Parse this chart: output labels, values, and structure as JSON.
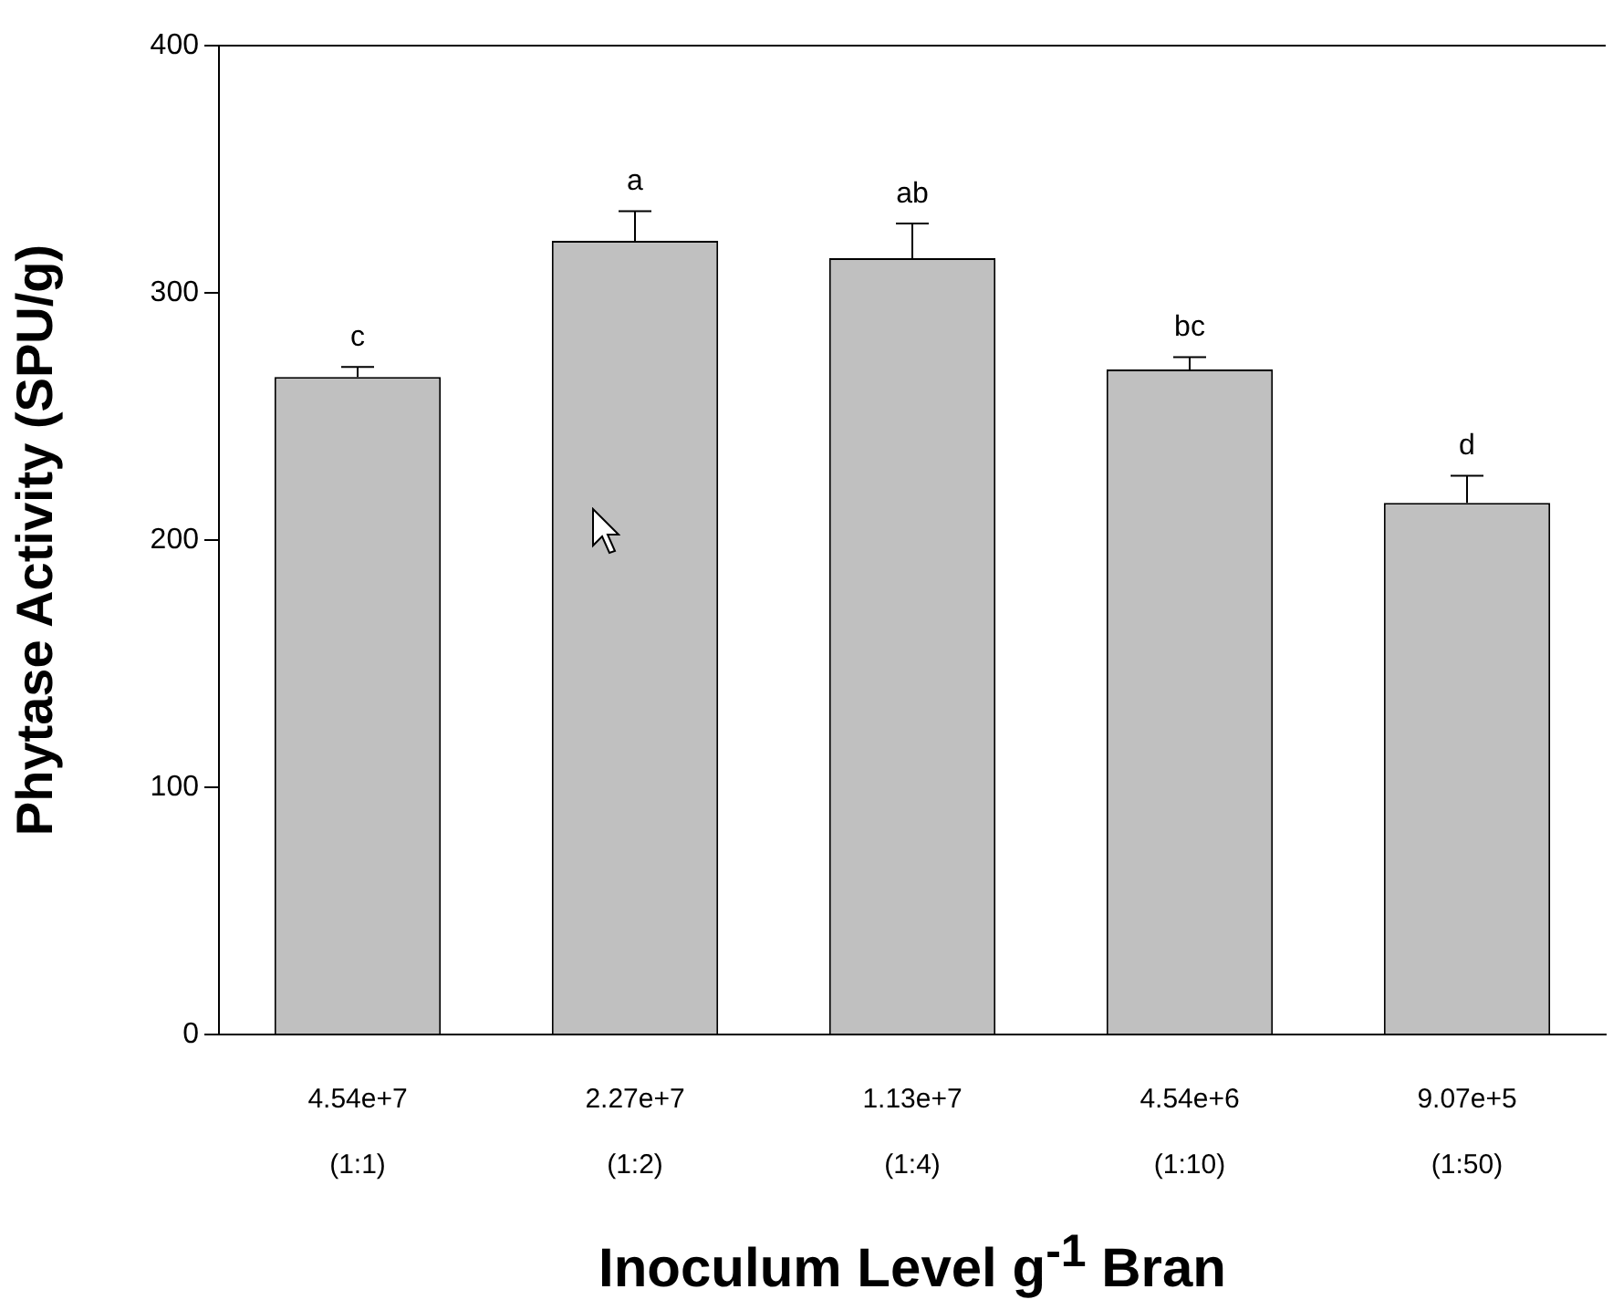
{
  "chart_data": {
    "type": "bar",
    "xlabel": "Inoculum Level g$^{-1}$ Bran",
    "ylabel": "Phytase Activity (SPU/g)",
    "categories": [
      "4.54e+7\n(1:1)",
      "2.27e+7\n(1:2)",
      "1.13e+7\n(1:4)",
      "4.54e+6\n(1:10)",
      "9.07e+5\n(1:50)"
    ],
    "values": [
      266,
      321,
      314,
      269,
      215
    ],
    "errors": [
      [
        266,
        270
      ],
      [
        321,
        333
      ],
      [
        314,
        328
      ],
      [
        269,
        274
      ],
      [
        215,
        226
      ]
    ],
    "color": "#c0c0c0",
    "ylim": [
      0,
      400
    ],
    "yticks": [
      0,
      100,
      200,
      300,
      400
    ],
    "grid": false,
    "legend": false,
    "annotations": [
      "c",
      "a",
      "ab",
      "bc",
      "d"
    ]
  }
}
